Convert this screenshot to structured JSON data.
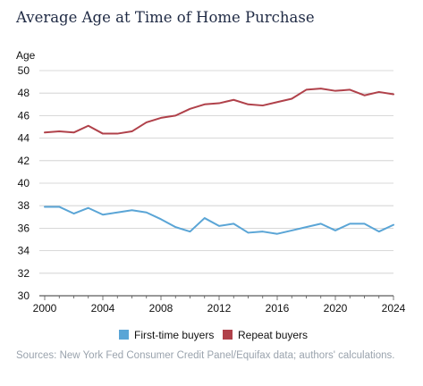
{
  "title": "Average Age at Time of Home Purchase",
  "source": "Sources: New York Fed Consumer Credit Panel/Equifax data; authors' calculations.",
  "colors": {
    "first_time": "#5aa5d6",
    "repeat": "#b0414a",
    "text": "#111111",
    "grid": "#cccccc"
  },
  "chart_data": {
    "type": "line",
    "title": "Average Age at Time of Home Purchase",
    "ylabel": "Age",
    "xlabel": "",
    "ylim": [
      30,
      50
    ],
    "xlim": [
      2000,
      2024
    ],
    "yticks": [
      30,
      32,
      34,
      36,
      38,
      40,
      42,
      44,
      46,
      48,
      50
    ],
    "xticks": [
      2000,
      2004,
      2008,
      2012,
      2016,
      2020,
      2024
    ],
    "legend_position": "bottom-center",
    "grid": "horizontal",
    "x": [
      2000,
      2001,
      2002,
      2003,
      2004,
      2005,
      2006,
      2007,
      2008,
      2009,
      2010,
      2011,
      2012,
      2013,
      2014,
      2015,
      2016,
      2017,
      2018,
      2019,
      2020,
      2021,
      2022,
      2023,
      2024
    ],
    "series": [
      {
        "name": "First-time buyers",
        "key": "first_time",
        "values": [
          37.9,
          37.9,
          37.3,
          37.8,
          37.2,
          37.4,
          37.6,
          37.4,
          36.8,
          36.1,
          35.7,
          36.9,
          36.2,
          36.4,
          35.6,
          35.7,
          35.5,
          35.8,
          36.1,
          36.4,
          35.8,
          36.4,
          36.4,
          35.7,
          36.3
        ]
      },
      {
        "name": "Repeat buyers",
        "key": "repeat",
        "values": [
          44.5,
          44.6,
          44.5,
          45.1,
          44.4,
          44.4,
          44.6,
          45.4,
          45.8,
          46.0,
          46.6,
          47.0,
          47.1,
          47.4,
          47.0,
          46.9,
          47.2,
          47.5,
          48.3,
          48.4,
          48.2,
          48.3,
          47.8,
          48.1,
          47.9
        ]
      }
    ]
  }
}
